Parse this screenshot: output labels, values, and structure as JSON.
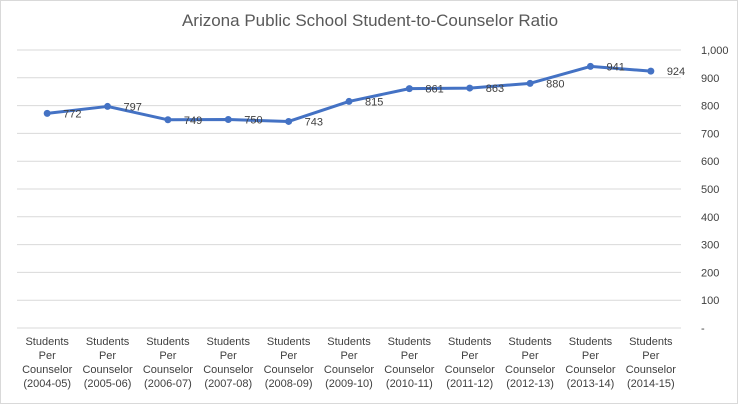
{
  "chart_data": {
    "type": "line",
    "title": "Arizona Public School Student-to-Counselor Ratio",
    "xlabel": "",
    "ylabel": "",
    "categories": [
      [
        "Students",
        "Per",
        "Counselor",
        "(2004-05)"
      ],
      [
        "Students",
        "Per",
        "Counselor",
        "(2005-06)"
      ],
      [
        "Students",
        "Per",
        "Counselor",
        "(2006-07)"
      ],
      [
        "Students",
        "Per",
        "Counselor",
        "(2007-08)"
      ],
      [
        "Students",
        "Per",
        "Counselor",
        "(2008-09)"
      ],
      [
        "Students",
        "Per",
        "Counselor",
        "(2009-10)"
      ],
      [
        "Students",
        "Per",
        "Counselor",
        "(2010-11)"
      ],
      [
        "Students",
        "Per",
        "Counselor",
        "(2011-12)"
      ],
      [
        "Students",
        "Per",
        "Counselor",
        "(2012-13)"
      ],
      [
        "Students",
        "Per",
        "Counselor",
        "(2013-14)"
      ],
      [
        "Students",
        "Per",
        "Counselor",
        "(2014-15)"
      ]
    ],
    "series": [
      {
        "values": [
          772,
          797,
          749,
          750,
          743,
          815,
          861,
          863,
          880,
          941,
          924
        ]
      }
    ],
    "ylim": [
      0,
      1000
    ],
    "yticks": [
      "-",
      "100",
      "200",
      "300",
      "400",
      "500",
      "600",
      "700",
      "800",
      "900",
      "1,000"
    ],
    "y_axis_side": "right",
    "grid": true,
    "legend": "none",
    "colors": {
      "line": "#4472c4",
      "grid": "#d9d9d9",
      "text": "#404040",
      "title": "#595959"
    }
  }
}
